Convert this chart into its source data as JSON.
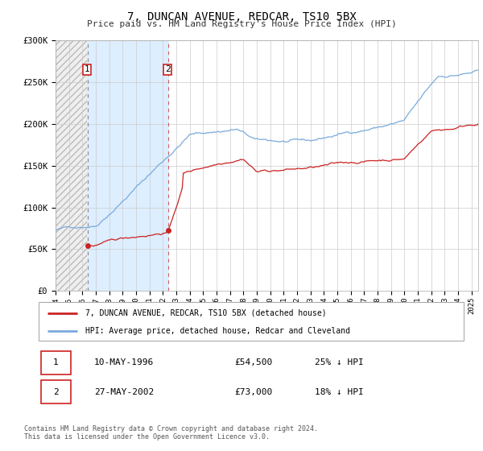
{
  "title": "7, DUNCAN AVENUE, REDCAR, TS10 5BX",
  "subtitle": "Price paid vs. HM Land Registry's House Price Index (HPI)",
  "background_color": "#ffffff",
  "plot_bg_color": "#ffffff",
  "grid_color": "#cccccc",
  "hpi_color": "#7aaadd",
  "price_color": "#cc2222",
  "sale1_date": 1996.37,
  "sale1_price": 54500,
  "sale2_date": 2002.4,
  "sale2_price": 73000,
  "legend1": "7, DUNCAN AVENUE, REDCAR, TS10 5BX (detached house)",
  "legend2": "HPI: Average price, detached house, Redcar and Cleveland",
  "table_row1": [
    "1",
    "10-MAY-1996",
    "£54,500",
    "25% ↓ HPI"
  ],
  "table_row2": [
    "2",
    "27-MAY-2002",
    "£73,000",
    "18% ↓ HPI"
  ],
  "footer": "Contains HM Land Registry data © Crown copyright and database right 2024.\nThis data is licensed under the Open Government Licence v3.0.",
  "xmin": 1994,
  "xmax": 2025.5,
  "ymin": 0,
  "ymax": 300000,
  "yticks": [
    0,
    50000,
    100000,
    150000,
    200000,
    250000,
    300000
  ],
  "ytick_labels": [
    "£0",
    "£50K",
    "£100K",
    "£150K",
    "£200K",
    "£250K",
    "£300K"
  ],
  "shaded_color": "#ddeeff",
  "hatch_color": "#e0e0e0"
}
